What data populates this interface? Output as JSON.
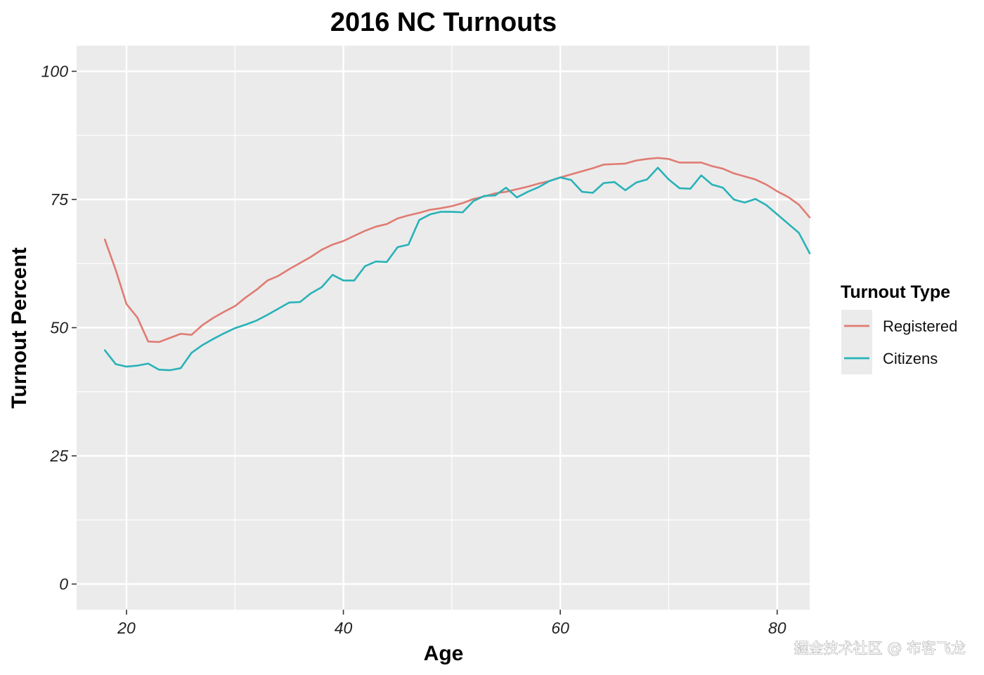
{
  "chart_data": {
    "type": "line",
    "title": "2016 NC Turnouts",
    "xlabel": "Age",
    "ylabel": "Turnout Percent",
    "xlim": [
      15.4,
      83
    ],
    "ylim": [
      -5,
      105
    ],
    "x_ticks": [
      20,
      40,
      60,
      80
    ],
    "y_ticks": [
      0,
      25,
      50,
      75,
      100
    ],
    "x_tick_labels": [
      "20",
      "40",
      "60",
      "80"
    ],
    "y_tick_labels": [
      "0",
      "25",
      "50",
      "75",
      "100"
    ],
    "grid": true,
    "panel_background": "#ebebeb",
    "grid_color": "#ffffff",
    "legend": {
      "title": "Turnout Type",
      "position": "right"
    },
    "x": [
      18,
      19,
      20,
      21,
      22,
      23,
      24,
      25,
      26,
      27,
      28,
      29,
      30,
      31,
      32,
      33,
      34,
      35,
      36,
      37,
      38,
      39,
      40,
      41,
      42,
      43,
      44,
      45,
      46,
      47,
      48,
      49,
      50,
      51,
      52,
      53,
      54,
      55,
      56,
      57,
      58,
      59,
      60,
      61,
      62,
      63,
      64,
      65,
      66,
      67,
      68,
      69,
      70,
      71,
      72,
      73,
      74,
      75,
      76,
      77,
      78,
      79,
      80,
      81,
      82,
      83
    ],
    "series": [
      {
        "name": "Registered",
        "color": "#e07b72",
        "values": [
          67.2,
          61.3,
          54.6,
          52.0,
          47.3,
          47.2,
          48.0,
          48.8,
          48.6,
          50.5,
          51.9,
          53.1,
          54.2,
          55.9,
          57.4,
          59.2,
          60.1,
          61.4,
          62.6,
          63.8,
          65.2,
          66.2,
          66.9,
          67.9,
          68.9,
          69.7,
          70.2,
          71.3,
          71.9,
          72.4,
          73.0,
          73.3,
          73.7,
          74.3,
          75.1,
          75.6,
          76.2,
          76.5,
          77.0,
          77.5,
          78.1,
          78.6,
          79.3,
          79.9,
          80.5,
          81.1,
          81.8,
          81.9,
          82.0,
          82.6,
          82.9,
          83.1,
          82.9,
          82.2,
          82.2,
          82.2,
          81.5,
          81.0,
          80.1,
          79.5,
          78.9,
          77.9,
          76.6,
          75.5,
          74.0,
          71.5
        ]
      },
      {
        "name": "Citizens",
        "color": "#28b2b8",
        "values": [
          45.6,
          42.9,
          42.4,
          42.6,
          43.0,
          41.8,
          41.7,
          42.1,
          45.1,
          46.6,
          47.8,
          48.9,
          49.9,
          50.6,
          51.4,
          52.5,
          53.7,
          54.9,
          55.0,
          56.7,
          57.9,
          60.3,
          59.2,
          59.2,
          62.0,
          62.9,
          62.8,
          65.7,
          66.2,
          71.0,
          72.1,
          72.6,
          72.6,
          72.5,
          74.7,
          75.7,
          75.8,
          77.3,
          75.4,
          76.5,
          77.4,
          78.6,
          79.3,
          78.8,
          76.5,
          76.3,
          78.2,
          78.4,
          76.8,
          78.3,
          78.9,
          81.2,
          78.9,
          77.2,
          77.1,
          79.7,
          77.9,
          77.3,
          75.0,
          74.4,
          75.1,
          73.9,
          72.1,
          70.3,
          68.5,
          64.5
        ]
      }
    ]
  },
  "watermark": "掘金技术社区 @ 布客飞龙"
}
